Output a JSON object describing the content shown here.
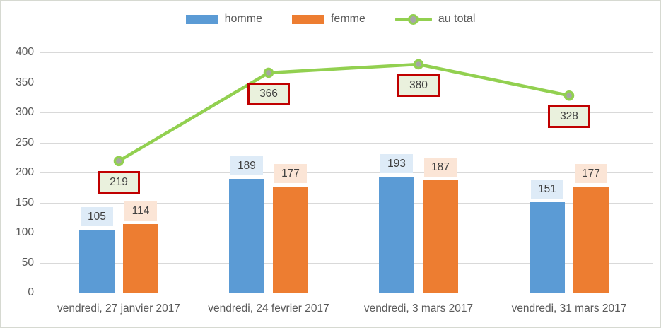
{
  "chart_data": {
    "type": "combo-bar-line",
    "title": "",
    "xlabel": "",
    "ylabel": "",
    "categories": [
      "vendredi, 27 janvier 2017",
      "vendredi, 24 fevrier 2017",
      "vendredi, 3 mars 2017",
      "vendredi, 31 mars 2017"
    ],
    "series": [
      {
        "name": "homme",
        "type": "bar",
        "color": "#5B9BD5",
        "label_bg": "#DEEBF7",
        "values": [
          105,
          189,
          193,
          151
        ]
      },
      {
        "name": "femme",
        "type": "bar",
        "color": "#ED7D31",
        "label_bg": "#FBE5D6",
        "values": [
          114,
          177,
          187,
          177
        ]
      },
      {
        "name": "au total",
        "type": "line",
        "color": "#92D050",
        "marker_fill": "#A6A6A6",
        "label_bg": "#EAF1DD",
        "label_border": "#C00000",
        "values": [
          219,
          366,
          380,
          328
        ]
      }
    ],
    "ylim": [
      0,
      400
    ],
    "yticks": [
      0,
      50,
      100,
      150,
      200,
      250,
      300,
      350,
      400
    ],
    "grid": true,
    "legend_position": "top"
  },
  "colors": {
    "grid": "#D9D9D9",
    "axis_line": "#C3C3C3",
    "tick_text": "#595959",
    "data_label_text": "#404040",
    "frame_border": "#D6D9D1",
    "background": "#FFFFFF"
  }
}
